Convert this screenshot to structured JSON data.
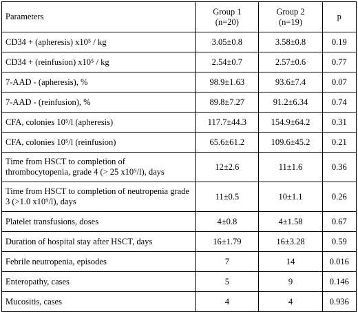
{
  "table": {
    "headers": [
      "Parameters",
      "Group 1\n(n=20)",
      "Group 2\n(n=19)",
      "p"
    ],
    "rows": [
      {
        "parameter": "CD34 + (apheresis) x10⁵ / kg",
        "group1": "3.05±0.8",
        "group2": "3.58±0.8",
        "p": "0.19"
      },
      {
        "parameter": "CD34 + (reinfusion) x10⁵ / kg",
        "group1": "2.54±0.7",
        "group2": "2.57±0.6",
        "p": "0.77"
      },
      {
        "parameter": "7-AAD - (apheresis), %",
        "group1": "98.9±1.63",
        "group2": "93.6±7.4",
        "p": "0.07"
      },
      {
        "parameter": "7-AAD - (reinfusion), %",
        "group1": "89.8±7.27",
        "group2": "91.2±6.34",
        "p": "0.74"
      },
      {
        "parameter": "CFA, colonies 10⁵/l (apheresis)",
        "group1": "117.7±44.3",
        "group2": "154.9±64.2",
        "p": "0.31"
      },
      {
        "parameter": "CFA, colonies 10⁵/l (reinfusion)",
        "group1": "65.6±61.2",
        "group2": "109.6±45.2",
        "p": "0.21"
      },
      {
        "parameter": "Time from HSCT to completion of thrombocytopenia, grade 4 (> 25 x10⁹/l), days",
        "group1": "12±2.6",
        "group2": "11±1.6",
        "p": "0.36"
      },
      {
        "parameter": "Time from HSCT to completion of neutropenia grade 3 (>1.0 x10⁹/l), days",
        "group1": "11±0.5",
        "group2": "10±1.1",
        "p": "0.26"
      },
      {
        "parameter": "Platelet transfusions, doses",
        "group1": "4±0.8",
        "group2": "4±1.58",
        "p": "0.67"
      },
      {
        "parameter": "Duration of hospital stay after HSCT, days",
        "group1": "16±1.79",
        "group2": "16±3.28",
        "p": "0.59"
      },
      {
        "parameter": "Febrile neutropenia, episodes",
        "group1": "7",
        "group2": "14",
        "p": "0.016"
      },
      {
        "parameter": "Enteropathy, cases",
        "group1": "5",
        "group2": "9",
        "p": "0.146"
      },
      {
        "parameter": "Mucositis, cases",
        "group1": "4",
        "group2": "4",
        "p": "0.936"
      }
    ]
  }
}
